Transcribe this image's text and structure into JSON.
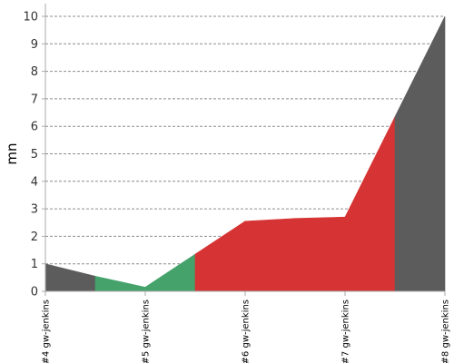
{
  "chart_data": {
    "type": "area",
    "ylabel": "mn",
    "xlabel": "",
    "ylim": [
      0,
      10
    ],
    "y_ticks": [
      0,
      1,
      2,
      3,
      4,
      5,
      6,
      7,
      8,
      9,
      10
    ],
    "grid": true,
    "legend": "none",
    "categories": [
      "#4 gw-jenkins",
      "#5 gw-jenkins",
      "#6 gw-jenkins",
      "#7 gw-jenkins",
      "#8 gw-jenkins"
    ],
    "x": [
      0,
      1,
      2,
      3,
      4
    ],
    "series": [
      {
        "points": [
          {
            "x": 0,
            "y": 1.0,
            "status": "aborted"
          },
          {
            "x": 0.5,
            "y": 0.55,
            "status": "success"
          },
          {
            "x": 1,
            "y": 0.15,
            "status": "success"
          },
          {
            "x": 1.5,
            "y": 1.35,
            "status": "failure"
          },
          {
            "x": 2,
            "y": 2.55,
            "status": "failure"
          },
          {
            "x": 2.5,
            "y": 2.65,
            "status": "failure"
          },
          {
            "x": 3,
            "y": 2.7,
            "status": "failure"
          },
          {
            "x": 3.5,
            "y": 6.35,
            "status": "aborted"
          },
          {
            "x": 4,
            "y": 10.0
          }
        ]
      }
    ],
    "colors": {
      "aborted": "#5c5c5c",
      "success": "#45a26b",
      "failure": "#d63434",
      "grid": "#8c8c8c",
      "axis": "#aaaaaa"
    }
  }
}
